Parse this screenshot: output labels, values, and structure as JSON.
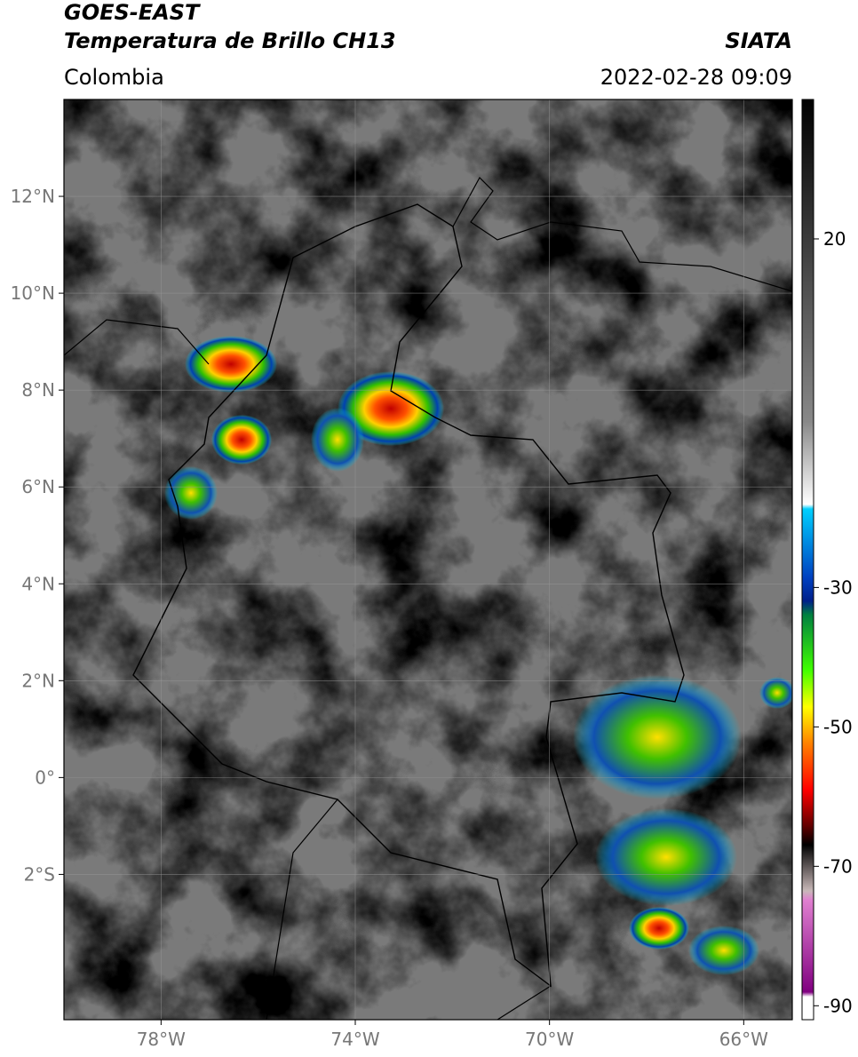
{
  "header": {
    "title_line1": "GOES-EAST",
    "title_line2": "Temperatura de Brillo CH13",
    "source": "SIATA",
    "region": "Colombia",
    "datetime": "2022-02-28 09:09"
  },
  "chart_data": {
    "type": "map",
    "xlim": [
      -80,
      -65
    ],
    "ylim": [
      -5,
      14
    ],
    "xticks": [
      {
        "value": -78,
        "label": "78°W"
      },
      {
        "value": -74,
        "label": "74°W"
      },
      {
        "value": -70,
        "label": "70°W"
      },
      {
        "value": -66,
        "label": "66°W"
      }
    ],
    "yticks": [
      {
        "value": 12,
        "label": "12°N"
      },
      {
        "value": 10,
        "label": "10°N"
      },
      {
        "value": 8,
        "label": "8°N"
      },
      {
        "value": 6,
        "label": "6°N"
      },
      {
        "value": 4,
        "label": "4°N"
      },
      {
        "value": 2,
        "label": "2°N"
      },
      {
        "value": 0,
        "label": "0°"
      },
      {
        "value": -2,
        "label": "2°S"
      }
    ],
    "grid": true,
    "colorbar": {
      "lim": [
        -92,
        40
      ],
      "ticks": [
        20,
        -30,
        -50,
        -70,
        -90
      ]
    }
  }
}
